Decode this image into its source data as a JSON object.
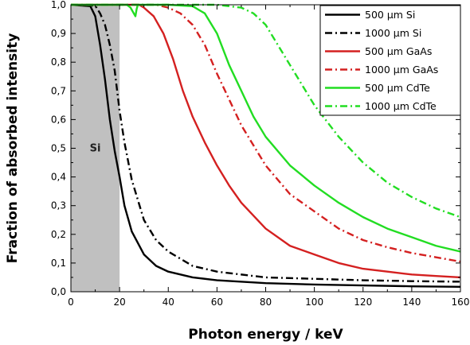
{
  "chart_data": {
    "type": "line",
    "xlabel": "Photon energy / keV",
    "ylabel": "Fraction of absorbed intensity",
    "xlim": [
      0,
      160
    ],
    "ylim": [
      0,
      1
    ],
    "x_ticks": [
      "0",
      "20",
      "40",
      "60",
      "80",
      "100",
      "120",
      "140",
      "160"
    ],
    "y_ticks": [
      "0,0",
      "0,1",
      "0,2",
      "0,3",
      "0,4",
      "0,5",
      "0,6",
      "0,7",
      "0,8",
      "0,9",
      "1,0"
    ],
    "grid": false,
    "legend_position": "top-right",
    "shaded_region": {
      "label": "Si",
      "x_range": [
        0,
        20
      ],
      "color": "#c0c0c0"
    },
    "series": [
      {
        "name": "500 μm Si",
        "color": "#000000",
        "dash": "solid",
        "points": [
          [
            0,
            1.0
          ],
          [
            8,
            0.995
          ],
          [
            10,
            0.96
          ],
          [
            12,
            0.86
          ],
          [
            14,
            0.74
          ],
          [
            16,
            0.6
          ],
          [
            18,
            0.49
          ],
          [
            20,
            0.4
          ],
          [
            22,
            0.3
          ],
          [
            25,
            0.21
          ],
          [
            30,
            0.13
          ],
          [
            35,
            0.09
          ],
          [
            40,
            0.07
          ],
          [
            50,
            0.05
          ],
          [
            60,
            0.04
          ],
          [
            80,
            0.03
          ],
          [
            100,
            0.025
          ],
          [
            120,
            0.022
          ],
          [
            140,
            0.019
          ],
          [
            160,
            0.017
          ]
        ]
      },
      {
        "name": "1000 μm Si",
        "color": "#000000",
        "dash": "dashdot",
        "points": [
          [
            0,
            1.0
          ],
          [
            10,
            0.997
          ],
          [
            12,
            0.97
          ],
          [
            14,
            0.93
          ],
          [
            16,
            0.86
          ],
          [
            18,
            0.77
          ],
          [
            20,
            0.63
          ],
          [
            22,
            0.52
          ],
          [
            25,
            0.39
          ],
          [
            30,
            0.25
          ],
          [
            35,
            0.18
          ],
          [
            40,
            0.14
          ],
          [
            50,
            0.09
          ],
          [
            60,
            0.07
          ],
          [
            80,
            0.05
          ],
          [
            100,
            0.045
          ],
          [
            120,
            0.04
          ],
          [
            140,
            0.037
          ],
          [
            160,
            0.035
          ]
        ]
      },
      {
        "name": "500 μm GaAs",
        "color": "#d42020",
        "dash": "solid",
        "points": [
          [
            0,
            1.0
          ],
          [
            28,
            1.0
          ],
          [
            30,
            0.99
          ],
          [
            34,
            0.96
          ],
          [
            38,
            0.9
          ],
          [
            42,
            0.81
          ],
          [
            46,
            0.7
          ],
          [
            50,
            0.61
          ],
          [
            55,
            0.52
          ],
          [
            60,
            0.44
          ],
          [
            65,
            0.37
          ],
          [
            70,
            0.31
          ],
          [
            80,
            0.22
          ],
          [
            90,
            0.16
          ],
          [
            100,
            0.13
          ],
          [
            110,
            0.1
          ],
          [
            120,
            0.08
          ],
          [
            130,
            0.07
          ],
          [
            140,
            0.06
          ],
          [
            150,
            0.055
          ],
          [
            160,
            0.05
          ]
        ]
      },
      {
        "name": "1000 μm GaAs",
        "color": "#d42020",
        "dash": "dashdot",
        "points": [
          [
            0,
            1.0
          ],
          [
            35,
            1.0
          ],
          [
            40,
            0.99
          ],
          [
            45,
            0.97
          ],
          [
            50,
            0.93
          ],
          [
            55,
            0.86
          ],
          [
            60,
            0.76
          ],
          [
            65,
            0.67
          ],
          [
            70,
            0.58
          ],
          [
            75,
            0.51
          ],
          [
            80,
            0.44
          ],
          [
            90,
            0.34
          ],
          [
            100,
            0.28
          ],
          [
            110,
            0.22
          ],
          [
            120,
            0.18
          ],
          [
            130,
            0.155
          ],
          [
            140,
            0.135
          ],
          [
            150,
            0.12
          ],
          [
            160,
            0.105
          ]
        ]
      },
      {
        "name": "500 μm CdTe",
        "color": "#22dd22",
        "dash": "solid",
        "points": [
          [
            0,
            1.0
          ],
          [
            23,
            1.0
          ],
          [
            24.5,
            0.99
          ],
          [
            25.5,
            0.975
          ],
          [
            26.5,
            0.96
          ],
          [
            27,
            0.985
          ],
          [
            27.5,
            1.0
          ],
          [
            40,
            1.0
          ],
          [
            50,
            0.995
          ],
          [
            55,
            0.97
          ],
          [
            60,
            0.9
          ],
          [
            65,
            0.79
          ],
          [
            70,
            0.7
          ],
          [
            75,
            0.61
          ],
          [
            80,
            0.54
          ],
          [
            90,
            0.44
          ],
          [
            100,
            0.37
          ],
          [
            110,
            0.31
          ],
          [
            120,
            0.26
          ],
          [
            130,
            0.22
          ],
          [
            140,
            0.19
          ],
          [
            150,
            0.16
          ],
          [
            160,
            0.14
          ]
        ]
      },
      {
        "name": "1000 μm CdTe",
        "color": "#22dd22",
        "dash": "dashdot",
        "points": [
          [
            0,
            1.0
          ],
          [
            60,
            1.0
          ],
          [
            70,
            0.99
          ],
          [
            75,
            0.97
          ],
          [
            80,
            0.93
          ],
          [
            85,
            0.86
          ],
          [
            90,
            0.79
          ],
          [
            95,
            0.72
          ],
          [
            100,
            0.65
          ],
          [
            110,
            0.54
          ],
          [
            120,
            0.45
          ],
          [
            130,
            0.38
          ],
          [
            140,
            0.33
          ],
          [
            150,
            0.29
          ],
          [
            160,
            0.26
          ]
        ]
      }
    ]
  }
}
